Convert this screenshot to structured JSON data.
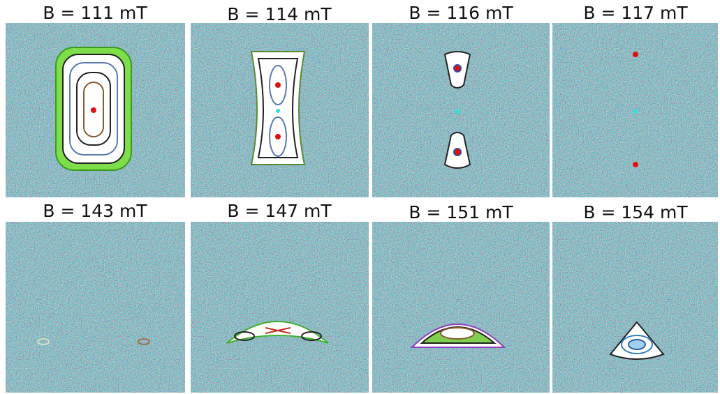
{
  "panels": [
    {
      "label": "B = 111 mT"
    },
    {
      "label": "B = 114 mT"
    },
    {
      "label": "B = 116 mT"
    },
    {
      "label": "B = 117 mT"
    },
    {
      "label": "B = 143 mT"
    },
    {
      "label": "B = 147 mT"
    },
    {
      "label": "B = 151 mT"
    },
    {
      "label": "B = 154 mT"
    }
  ]
}
